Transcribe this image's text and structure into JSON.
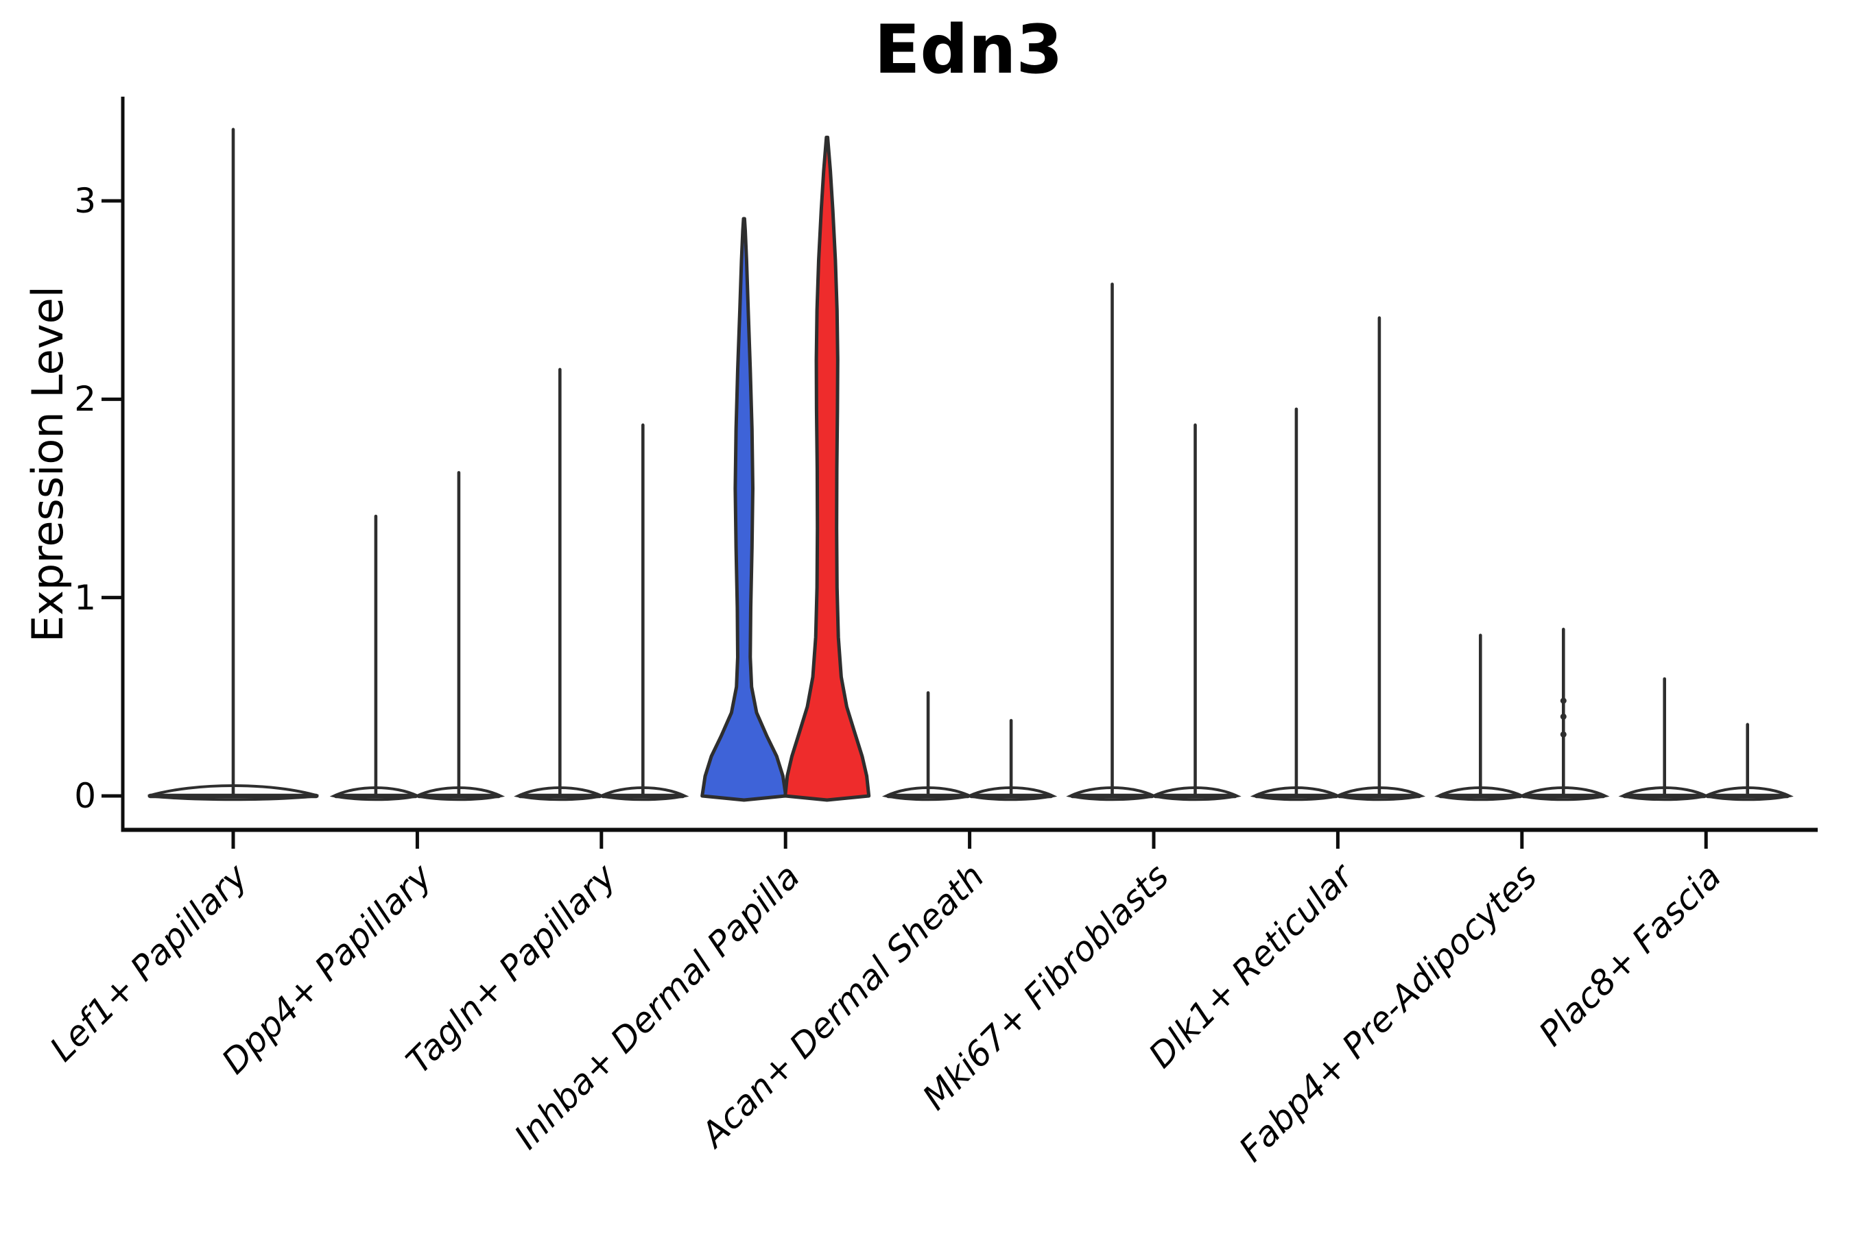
{
  "title": "Edn3",
  "axes": {
    "ylabel": "Expression Level"
  },
  "chart_data": {
    "type": "violin",
    "title": "Edn3",
    "xlabel": "",
    "ylabel": "Expression Level",
    "ylim": [
      -0.17,
      3.53
    ],
    "yticks": [
      0,
      1,
      2,
      3
    ],
    "grid": false,
    "legend_position": "none",
    "outline_color": "#2e2e2e",
    "spine_color": "#0d0d0d",
    "split_colors": {
      "left_violin": "#3E63D8",
      "right_violin": "#EE2C2C"
    },
    "categories": [
      "Lef1+ Papillary",
      "Dpp4+ Papillary",
      "Tagln+ Papillary",
      "Inhba+ Dermal Papilla",
      "Acan+ Dermal Sheath",
      "Mki67+ Fibroblasts",
      "Dlk1+ Reticular",
      "Fabp4+ Pre-Adipocytes",
      "Plac8+ Fascia"
    ],
    "groups": [
      {
        "label": "Lef1+ Papillary",
        "violins": [
          {
            "kind": "spike",
            "solo": true,
            "max": 3.36
          }
        ]
      },
      {
        "label": "Dpp4+ Papillary",
        "violins": [
          {
            "kind": "spike",
            "max": 1.41
          },
          {
            "kind": "spike",
            "max": 1.63
          }
        ]
      },
      {
        "label": "Tagln+ Papillary",
        "violins": [
          {
            "kind": "spike",
            "max": 2.15
          },
          {
            "kind": "spike",
            "max": 1.87
          }
        ]
      },
      {
        "label": "Inhba+ Dermal Papilla",
        "violins": [
          {
            "kind": "shaped",
            "color": "#3E63D8",
            "max": 2.91,
            "profile": [
              [
                0,
                1
              ],
              [
                0.1,
                0.93
              ],
              [
                0.2,
                0.78
              ],
              [
                0.3,
                0.55
              ],
              [
                0.42,
                0.3
              ],
              [
                0.55,
                0.18
              ],
              [
                0.7,
                0.15
              ],
              [
                0.95,
                0.16
              ],
              [
                1.25,
                0.19
              ],
              [
                1.55,
                0.21
              ],
              [
                1.85,
                0.19
              ],
              [
                2.15,
                0.15
              ],
              [
                2.45,
                0.1
              ],
              [
                2.7,
                0.06
              ],
              [
                2.85,
                0.03
              ],
              [
                2.91,
                0.012
              ]
            ]
          },
          {
            "kind": "shaped",
            "color": "#EE2C2C",
            "max": 3.32,
            "profile": [
              [
                0,
                1
              ],
              [
                0.1,
                0.95
              ],
              [
                0.2,
                0.84
              ],
              [
                0.32,
                0.66
              ],
              [
                0.45,
                0.47
              ],
              [
                0.6,
                0.34
              ],
              [
                0.8,
                0.27
              ],
              [
                1.05,
                0.24
              ],
              [
                1.35,
                0.23
              ],
              [
                1.65,
                0.235
              ],
              [
                1.95,
                0.25
              ],
              [
                2.2,
                0.255
              ],
              [
                2.45,
                0.24
              ],
              [
                2.7,
                0.2
              ],
              [
                2.95,
                0.14
              ],
              [
                3.15,
                0.08
              ],
              [
                3.32,
                0.015
              ]
            ]
          }
        ]
      },
      {
        "label": "Acan+ Dermal Sheath",
        "violins": [
          {
            "kind": "spike",
            "max": 0.52
          },
          {
            "kind": "spike",
            "max": 0.38
          }
        ]
      },
      {
        "label": "Mki67+ Fibroblasts",
        "violins": [
          {
            "kind": "spike",
            "max": 2.58
          },
          {
            "kind": "spike",
            "max": 1.87
          }
        ]
      },
      {
        "label": "Dlk1+ Reticular",
        "violins": [
          {
            "kind": "spike",
            "max": 1.95
          },
          {
            "kind": "spike",
            "max": 2.41
          }
        ]
      },
      {
        "label": "Fabp4+ Pre-Adipocytes",
        "violins": [
          {
            "kind": "spike",
            "max": 0.81
          },
          {
            "kind": "spike",
            "max": 0.84,
            "points": [
              0.48,
              0.4,
              0.31
            ]
          }
        ]
      },
      {
        "label": "Plac8+ Fascia",
        "violins": [
          {
            "kind": "spike",
            "max": 0.59
          },
          {
            "kind": "spike",
            "max": 0.36
          }
        ]
      }
    ]
  }
}
